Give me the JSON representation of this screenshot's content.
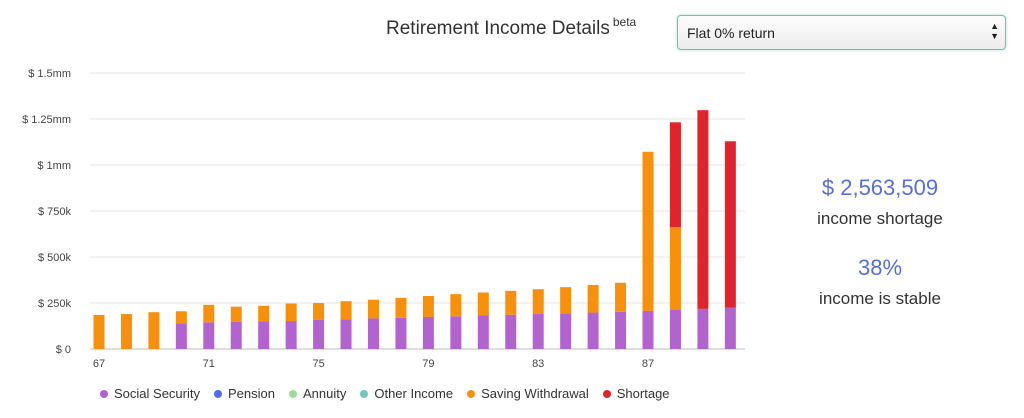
{
  "header": {
    "title": "Retirement Income Details",
    "badge": "beta"
  },
  "scenario_select": {
    "selected": "Flat 0% return",
    "arrow_icon": "up-down-arrows-icon"
  },
  "summary": {
    "amount": "$ 2,563,509",
    "amount_label": "income shortage",
    "percent": "38%",
    "percent_label": "income is stable",
    "accent_color": "#5670d8"
  },
  "chart_data": {
    "type": "bar",
    "stacked": true,
    "x": [
      67,
      68,
      69,
      70,
      71,
      72,
      73,
      74,
      75,
      76,
      77,
      78,
      79,
      80,
      81,
      82,
      83,
      84,
      85,
      86,
      87,
      88,
      89,
      90
    ],
    "x_tick_labels": [
      "67",
      "71",
      "75",
      "79",
      "83",
      "87"
    ],
    "y_tick_labels": [
      "$ 0",
      "$ 250k",
      "$ 500k",
      "$ 750k",
      "$ 1mm",
      "$ 1.25mm",
      "$ 1.5mm"
    ],
    "y_ticks": [
      0,
      250000,
      500000,
      750000,
      1000000,
      1250000,
      1500000
    ],
    "ylim": [
      0,
      1500000
    ],
    "grid": true,
    "legend_position": "bottom",
    "series": [
      {
        "name": "Social Security",
        "color": "#b363cf",
        "values": [
          0,
          0,
          0,
          140000,
          145000,
          148000,
          150000,
          152000,
          158000,
          162000,
          166000,
          170000,
          174000,
          178000,
          182000,
          186000,
          190000,
          194000,
          198000,
          202000,
          207000,
          212000,
          218000,
          224000
        ]
      },
      {
        "name": "Pension",
        "color": "#4e6cf2",
        "values": [
          0,
          0,
          0,
          0,
          0,
          0,
          0,
          0,
          0,
          0,
          0,
          0,
          0,
          0,
          0,
          0,
          0,
          0,
          0,
          0,
          0,
          0,
          0,
          0
        ]
      },
      {
        "name": "Annuity",
        "color": "#9fdc9a",
        "values": [
          0,
          0,
          0,
          0,
          0,
          0,
          0,
          0,
          0,
          0,
          0,
          0,
          0,
          0,
          0,
          0,
          0,
          0,
          0,
          0,
          0,
          0,
          0,
          0
        ]
      },
      {
        "name": "Other Income",
        "color": "#6cc9c0",
        "values": [
          0,
          0,
          0,
          0,
          0,
          0,
          0,
          0,
          0,
          0,
          0,
          0,
          0,
          0,
          0,
          0,
          0,
          0,
          0,
          0,
          0,
          0,
          0,
          0
        ]
      },
      {
        "name": "Saving Withdrawal",
        "color": "#f8900c",
        "values": [
          185000,
          190000,
          200000,
          65000,
          95000,
          82000,
          85000,
          95000,
          92000,
          98000,
          102000,
          108000,
          114000,
          120000,
          125000,
          130000,
          135000,
          142000,
          150000,
          158000,
          865000,
          450000,
          0,
          0
        ]
      },
      {
        "name": "Shortage",
        "color": "#e1232b",
        "values": [
          0,
          0,
          0,
          0,
          0,
          0,
          0,
          0,
          0,
          0,
          0,
          0,
          0,
          0,
          0,
          0,
          0,
          0,
          0,
          0,
          0,
          570000,
          1080000,
          905000
        ]
      }
    ]
  }
}
